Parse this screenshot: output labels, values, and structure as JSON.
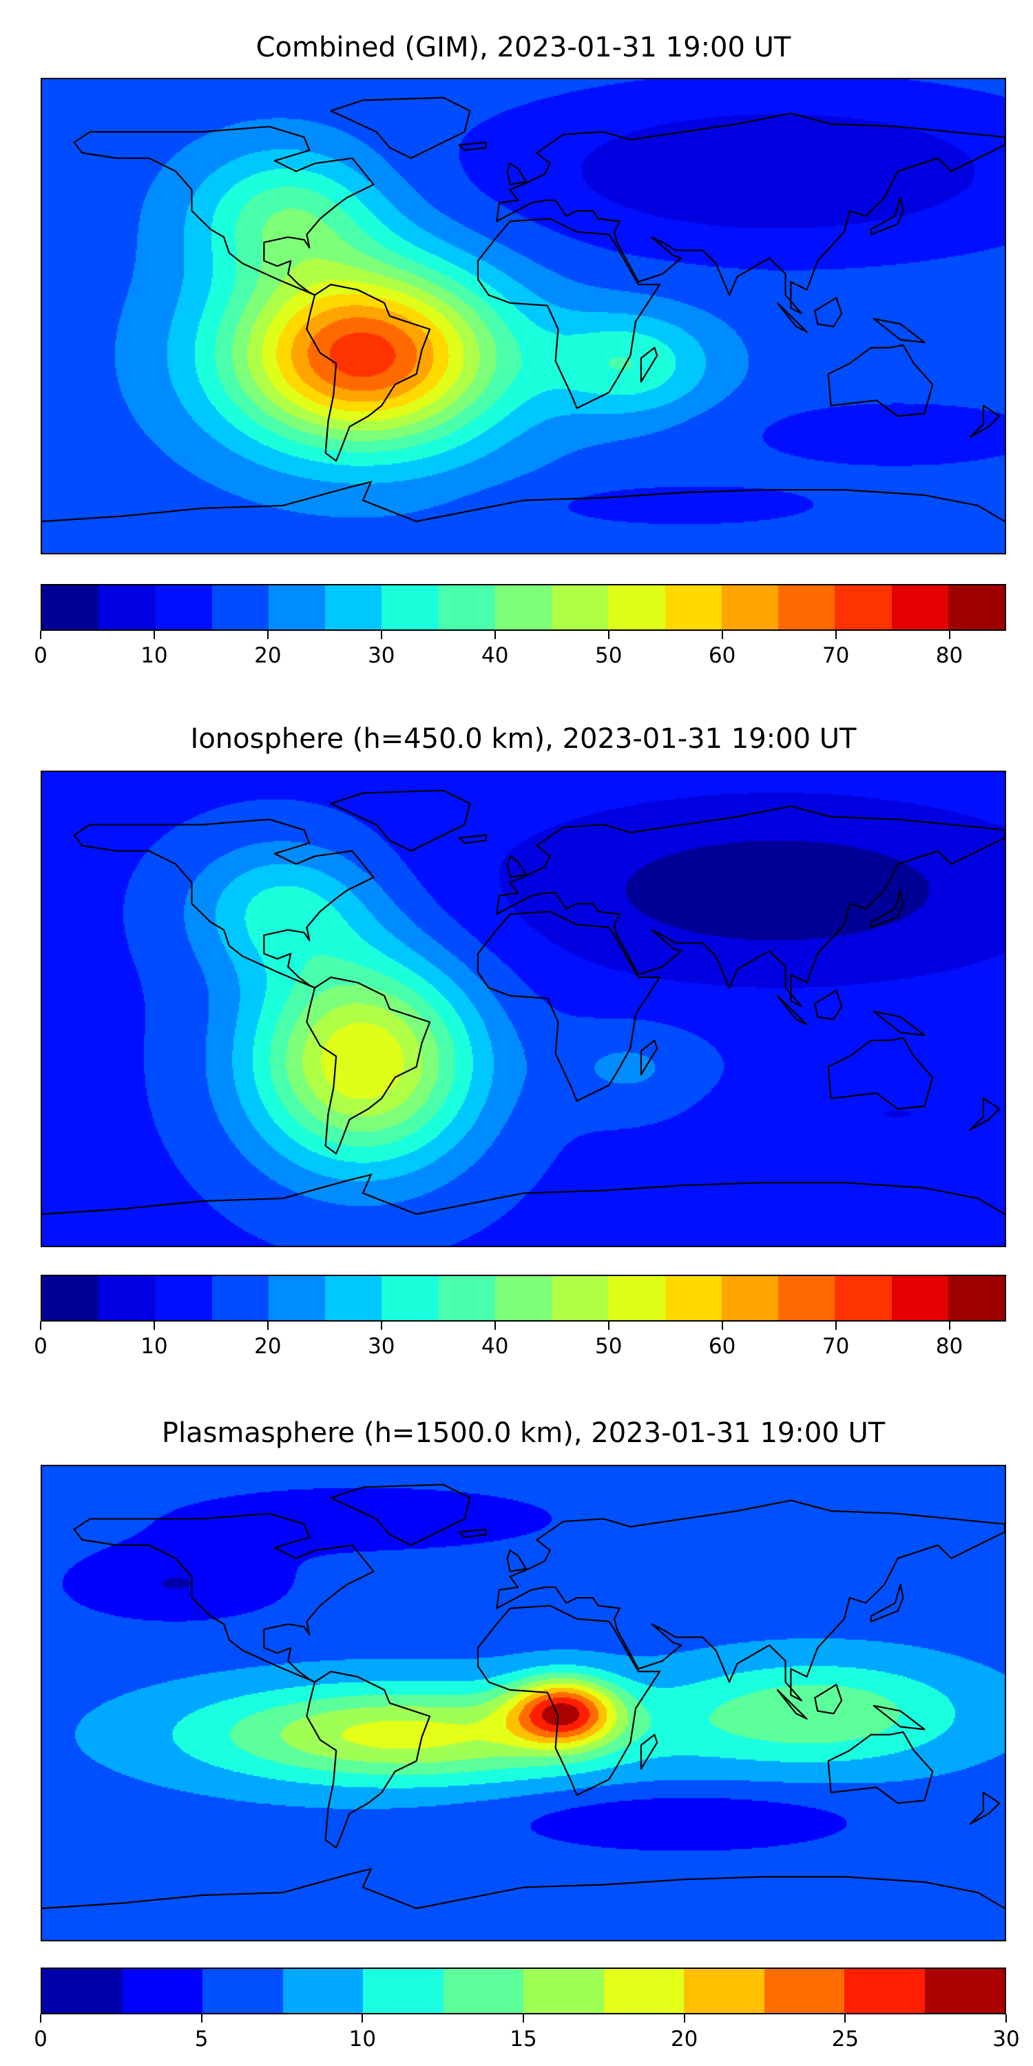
{
  "chart_data": [
    {
      "type": "heatmap",
      "subtype": "filled-contour world map",
      "title": "Combined (GIM), 2023-01-31 19:00 UT",
      "lon_range": [
        -180,
        180
      ],
      "lat_range": [
        -90,
        90
      ],
      "levels": [
        0,
        5,
        10,
        15,
        20,
        25,
        30,
        35,
        40,
        45,
        50,
        55,
        60,
        65,
        70,
        75,
        80,
        85
      ],
      "colorbar_ticks": [
        "0",
        "10",
        "20",
        "30",
        "40",
        "50",
        "60",
        "70",
        "80"
      ],
      "colorbar_tick_values": [
        0,
        10,
        20,
        30,
        40,
        50,
        60,
        70,
        80
      ],
      "colors": [
        "#000096",
        "#0000e0",
        "#0010ff",
        "#004cff",
        "#008cff",
        "#00c8ff",
        "#1affdc",
        "#4affac",
        "#7dff7a",
        "#b0ff47",
        "#dfff1a",
        "#ffd900",
        "#ffa400",
        "#ff6a00",
        "#ff3300",
        "#e40000",
        "#9e0000"
      ],
      "field": {
        "base": 18,
        "features": [
          {
            "lon": -60,
            "lat": -15,
            "value": 55,
            "lon_spread": 36,
            "lat_spread": 24
          },
          {
            "lon": -88,
            "lat": 38,
            "value": 20,
            "lon_spread": 25,
            "lat_spread": 18
          },
          {
            "lon": 40,
            "lat": -18,
            "value": 16,
            "lon_spread": 22,
            "lat_spread": 14
          },
          {
            "lon": 95,
            "lat": 55,
            "value": -13,
            "lon_spread": 75,
            "lat_spread": 22
          },
          {
            "lon": 140,
            "lat": -45,
            "value": -6,
            "lon_spread": 45,
            "lat_spread": 10
          },
          {
            "lon": 60,
            "lat": -72,
            "value": -6,
            "lon_spread": 40,
            "lat_spread": 6
          }
        ]
      }
    },
    {
      "type": "heatmap",
      "subtype": "filled-contour world map",
      "title": "Ionosphere  (h=450.0 km), 2023-01-31 19:00 UT",
      "lon_range": [
        -180,
        180
      ],
      "lat_range": [
        -90,
        90
      ],
      "levels": [
        0,
        5,
        10,
        15,
        20,
        25,
        30,
        35,
        40,
        45,
        50,
        55,
        60,
        65,
        70,
        75,
        80,
        85
      ],
      "colorbar_ticks": [
        "0",
        "10",
        "20",
        "30",
        "40",
        "50",
        "60",
        "70",
        "80"
      ],
      "colorbar_tick_values": [
        0,
        10,
        20,
        30,
        40,
        50,
        60,
        70,
        80
      ],
      "colors": [
        "#000096",
        "#0000e0",
        "#0010ff",
        "#004cff",
        "#008cff",
        "#00c8ff",
        "#1affdc",
        "#4affac",
        "#7dff7a",
        "#b0ff47",
        "#dfff1a",
        "#ffd900",
        "#ffa400",
        "#ff6a00",
        "#ff3300",
        "#e40000",
        "#9e0000"
      ],
      "field": {
        "base": 14,
        "features": [
          {
            "lon": -60,
            "lat": -20,
            "value": 41,
            "lon_spread": 30,
            "lat_spread": 28
          },
          {
            "lon": -90,
            "lat": 38,
            "value": 17,
            "lon_spread": 25,
            "lat_spread": 18
          },
          {
            "lon": 95,
            "lat": 45,
            "value": -12,
            "lon_spread": 75,
            "lat_spread": 25
          },
          {
            "lon": 40,
            "lat": -22,
            "value": 7,
            "lon_spread": 20,
            "lat_spread": 12
          },
          {
            "lon": 140,
            "lat": -40,
            "value": -4,
            "lon_spread": 40,
            "lat_spread": 10
          }
        ]
      }
    },
    {
      "type": "heatmap",
      "subtype": "filled-contour world map",
      "title": "Plasmasphere (h=1500.0 km), 2023-01-31 19:00 UT",
      "lon_range": [
        -180,
        180
      ],
      "lat_range": [
        -90,
        90
      ],
      "levels": [
        0,
        2.5,
        5,
        7.5,
        10,
        12.5,
        15,
        17.5,
        20,
        22.5,
        25,
        27.5,
        30
      ],
      "colorbar_ticks": [
        "0",
        "5",
        "10",
        "15",
        "20",
        "25",
        "30"
      ],
      "colorbar_tick_values": [
        0,
        5,
        10,
        15,
        20,
        25,
        30
      ],
      "colors": [
        "#0000aa",
        "#0000ff",
        "#0050ff",
        "#00a8ff",
        "#1affdf",
        "#5cff9a",
        "#a0ff55",
        "#e4ff18",
        "#ffc000",
        "#ff6c00",
        "#ff1e00",
        "#aa0000"
      ],
      "field": {
        "base": 6.5,
        "features": [
          {
            "lon": 15,
            "lat": -3,
            "value": 17,
            "lon_spread": 14,
            "lat_spread": 9
          },
          {
            "lon": -45,
            "lat": -12,
            "value": 12,
            "lon_spread": 55,
            "lat_spread": 13
          },
          {
            "lon": 110,
            "lat": -4,
            "value": 8,
            "lon_spread": 40,
            "lat_spread": 14
          },
          {
            "lon": -130,
            "lat": 45,
            "value": -4,
            "lon_spread": 30,
            "lat_spread": 10
          },
          {
            "lon": 60,
            "lat": -45,
            "value": -4,
            "lon_spread": 45,
            "lat_spread": 8
          },
          {
            "lon": -60,
            "lat": 70,
            "value": -3,
            "lon_spread": 60,
            "lat_spread": 10
          }
        ]
      }
    }
  ]
}
